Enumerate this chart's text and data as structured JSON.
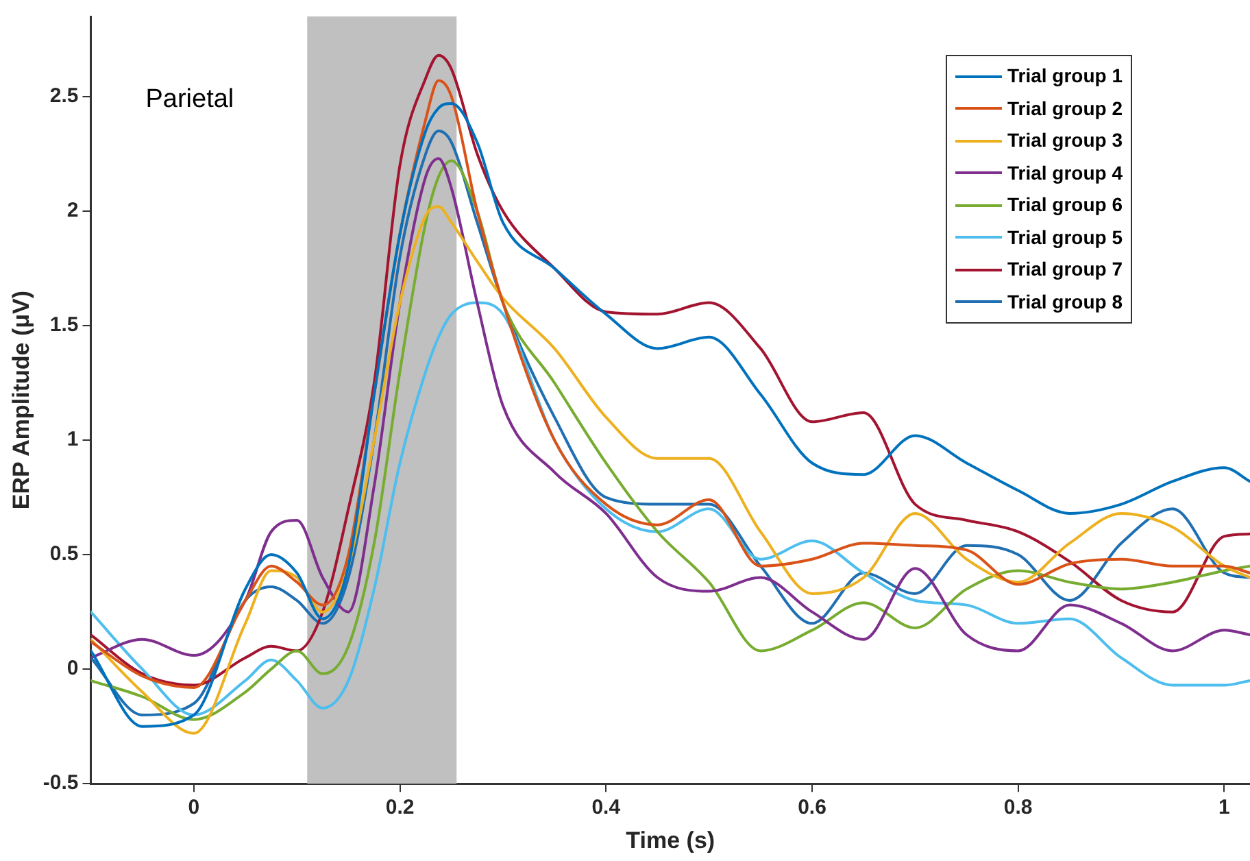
{
  "chart_data": {
    "type": "line",
    "xlabel": "Time (s)",
    "ylabel": "ERP Amplitude (μV)",
    "annotations": [
      "Parietal"
    ],
    "x": [
      -0.1,
      -0.05,
      0,
      0.05,
      0.075,
      0.1,
      0.125,
      0.15,
      0.175,
      0.2,
      0.225,
      0.2375,
      0.25,
      0.275,
      0.3,
      0.35,
      0.4,
      0.45,
      0.5,
      0.55,
      0.6,
      0.65,
      0.7,
      0.75,
      0.8,
      0.85,
      0.9,
      0.95,
      1.0,
      1.025
    ],
    "xlim": [
      -0.1,
      1.025
    ],
    "xticks": [
      0,
      0.2,
      0.4,
      0.6,
      0.8,
      1
    ],
    "ylim": [
      -0.5,
      2.85
    ],
    "yticks": [
      -0.5,
      0,
      0.5,
      1,
      1.5,
      2,
      2.5
    ],
    "grid": false,
    "legend": "top right",
    "marker": "none",
    "line_style": "solid",
    "bands": [
      {
        "axis": "x",
        "from": 0.11,
        "to": 0.255,
        "color": "#c0c0c0"
      }
    ],
    "series": [
      {
        "name": "Trial group 1",
        "color": "#0072bd",
        "values": [
          0.08,
          -0.25,
          -0.2,
          0.35,
          0.5,
          0.42,
          0.22,
          0.45,
          1.2,
          1.9,
          2.35,
          2.45,
          2.47,
          2.3,
          1.95,
          1.75,
          1.55,
          1.4,
          1.45,
          1.2,
          0.9,
          0.85,
          1.02,
          0.9,
          0.78,
          0.68,
          0.72,
          0.82,
          0.88,
          0.82
        ]
      },
      {
        "name": "Trial group 2",
        "color": "#d95319",
        "values": [
          0.12,
          -0.03,
          -0.08,
          0.3,
          0.45,
          0.38,
          0.28,
          0.5,
          1.2,
          1.9,
          2.4,
          2.57,
          2.5,
          2.0,
          1.6,
          1.0,
          0.72,
          0.63,
          0.74,
          0.45,
          0.48,
          0.55,
          0.54,
          0.52,
          0.37,
          0.46,
          0.48,
          0.45,
          0.45,
          0.42
        ]
      },
      {
        "name": "Trial group 3",
        "color": "#edb120",
        "values": [
          0.13,
          -0.1,
          -0.28,
          0.2,
          0.43,
          0.4,
          0.25,
          0.45,
          1.0,
          1.6,
          1.98,
          2.02,
          1.95,
          1.78,
          1.62,
          1.4,
          1.1,
          0.92,
          0.92,
          0.6,
          0.33,
          0.4,
          0.68,
          0.48,
          0.38,
          0.55,
          0.68,
          0.62,
          0.45,
          0.4
        ]
      },
      {
        "name": "Trial group 4",
        "color": "#7e2f8e",
        "values": [
          0.05,
          0.13,
          0.06,
          0.3,
          0.6,
          0.65,
          0.4,
          0.25,
          0.8,
          1.6,
          2.15,
          2.23,
          2.1,
          1.6,
          1.15,
          0.86,
          0.68,
          0.4,
          0.34,
          0.4,
          0.25,
          0.13,
          0.44,
          0.15,
          0.08,
          0.28,
          0.2,
          0.08,
          0.17,
          0.15
        ]
      },
      {
        "name": "Trial group 6",
        "color": "#77ac30",
        "values": [
          -0.05,
          -0.12,
          -0.22,
          -0.1,
          0.0,
          0.08,
          -0.02,
          0.1,
          0.55,
          1.3,
          1.95,
          2.15,
          2.22,
          2.0,
          1.6,
          1.25,
          0.9,
          0.6,
          0.38,
          0.08,
          0.17,
          0.29,
          0.18,
          0.35,
          0.43,
          0.38,
          0.35,
          0.38,
          0.43,
          0.45
        ]
      },
      {
        "name": "Trial group 5",
        "color": "#4dbeee",
        "values": [
          0.25,
          0.0,
          -0.2,
          -0.05,
          0.04,
          -0.05,
          -0.17,
          -0.05,
          0.35,
          0.9,
          1.3,
          1.45,
          1.55,
          1.6,
          1.55,
          1.0,
          0.7,
          0.6,
          0.7,
          0.48,
          0.56,
          0.42,
          0.3,
          0.28,
          0.2,
          0.22,
          0.05,
          -0.07,
          -0.07,
          -0.05
        ]
      },
      {
        "name": "Trial group 7",
        "color": "#a2142f",
        "values": [
          0.15,
          -0.02,
          -0.07,
          0.05,
          0.1,
          0.08,
          0.25,
          0.7,
          1.25,
          2.2,
          2.58,
          2.68,
          2.62,
          2.25,
          2.0,
          1.75,
          1.56,
          1.55,
          1.6,
          1.4,
          1.08,
          1.12,
          0.72,
          0.65,
          0.6,
          0.47,
          0.3,
          0.25,
          0.58,
          0.59
        ]
      },
      {
        "name": "Trial group 8",
        "color": "#1f6fb2",
        "values": [
          0.05,
          -0.2,
          -0.15,
          0.3,
          0.36,
          0.3,
          0.2,
          0.4,
          1.0,
          1.8,
          2.25,
          2.35,
          2.3,
          1.95,
          1.6,
          1.1,
          0.75,
          0.72,
          0.72,
          0.45,
          0.2,
          0.42,
          0.33,
          0.54,
          0.5,
          0.3,
          0.55,
          0.7,
          0.42,
          0.4
        ]
      }
    ]
  }
}
